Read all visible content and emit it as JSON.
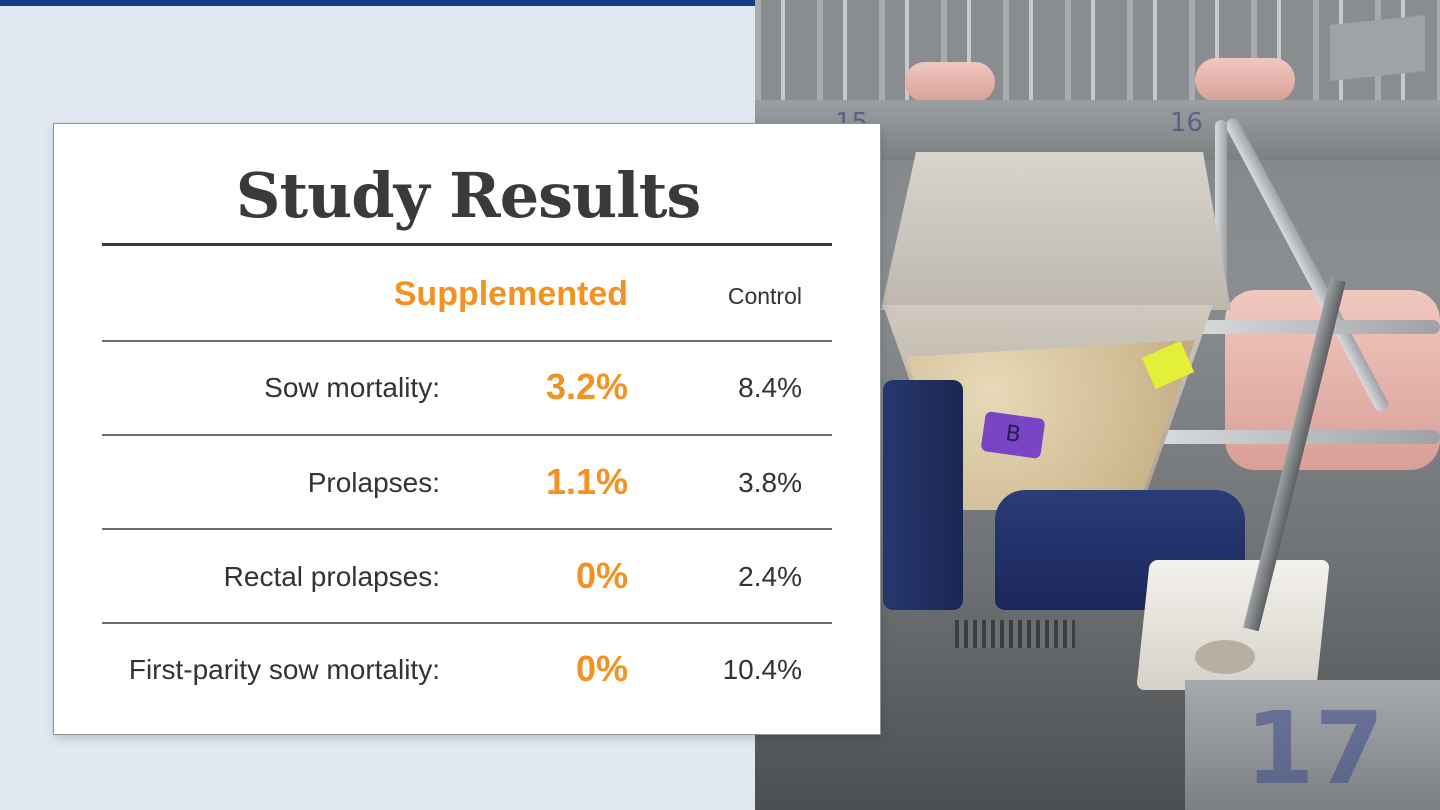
{
  "card": {
    "title": "Study Results",
    "col_supplemented": "Supplemented",
    "col_control": "Control",
    "rows": [
      {
        "label": "Sow mortality:",
        "supplemented": "3.2%",
        "control": "8.4%"
      },
      {
        "label": "Prolapses:",
        "supplemented": "1.1%",
        "control": "3.8%"
      },
      {
        "label": "Rectal prolapses:",
        "supplemented": "0%",
        "control": "2.4%"
      },
      {
        "label": "First-parity sow mortality:",
        "supplemented": "0%",
        "control": "10.4%"
      }
    ]
  },
  "photo": {
    "hopper_label": "B",
    "pen_number_back_left": "15",
    "pen_number_back_right": "16",
    "pen_number_front": "17"
  },
  "colors": {
    "accent": "#f39121",
    "top_bar": "#123f86",
    "background": "#e1e8f2",
    "text": "#333333"
  }
}
